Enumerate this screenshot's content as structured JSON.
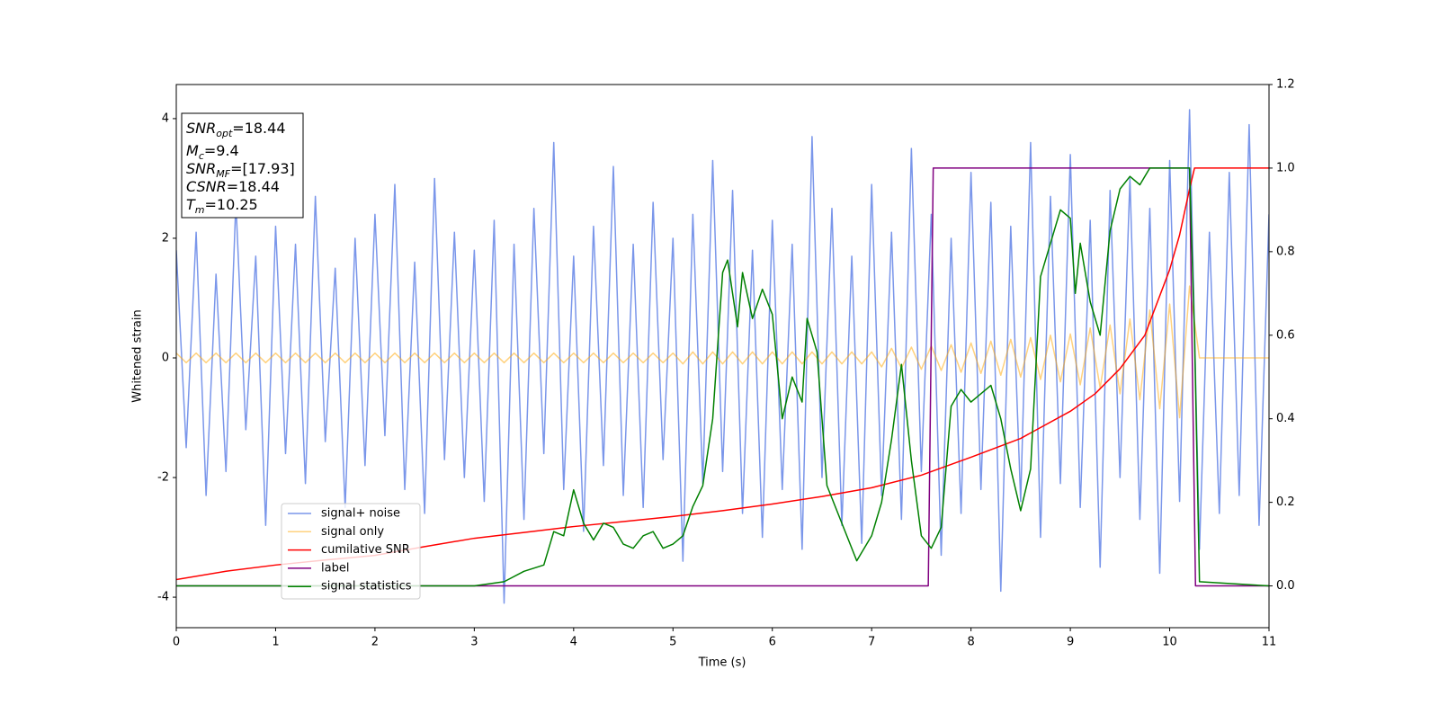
{
  "chart_data": {
    "type": "line",
    "xlabel": "Time (s)",
    "ylabel": "Whitened strain",
    "xlim": [
      0,
      11
    ],
    "ylim": [
      -4.51,
      4.57
    ],
    "y2lim": [
      -0.1,
      1.2
    ],
    "xticks": [
      0,
      1,
      2,
      3,
      4,
      5,
      6,
      7,
      8,
      9,
      10,
      11
    ],
    "yticks": [
      -4,
      -2,
      0,
      2,
      4
    ],
    "y2ticks": [
      {
        "value": 0,
        "label": "0.0"
      },
      {
        "value": 0.2,
        "label": "0.2"
      },
      {
        "value": 0.4,
        "label": "0.4"
      },
      {
        "value": 0.6,
        "label": "0.6"
      },
      {
        "value": 0.8,
        "label": "0.8"
      },
      {
        "value": 1.0,
        "label": "1.0"
      },
      {
        "value": 1.2,
        "label": "1.2"
      }
    ],
    "annotations": [
      {
        "name": "SNR",
        "subscript": "opt",
        "text": "=18.44"
      },
      {
        "name": "M",
        "subscript": "c",
        "text": "=9.4"
      },
      {
        "name": "SNR",
        "subscript": "MF",
        "text": "=[17.93]"
      },
      {
        "name": "CSNR",
        "text": "=18.44"
      },
      {
        "name": "T",
        "subscript": "m",
        "text": "=10.25"
      }
    ],
    "x": [
      0,
      0.1,
      0.2,
      0.3,
      0.4,
      0.5,
      0.6,
      0.7,
      0.8,
      0.9,
      1,
      1.1,
      1.2,
      1.3,
      1.4,
      1.5,
      1.6,
      1.7,
      1.8,
      1.9,
      2,
      2.1,
      2.2,
      2.3,
      2.4,
      2.5,
      2.6,
      2.7,
      2.8,
      2.9,
      3,
      3.1,
      3.2,
      3.3,
      3.4,
      3.5,
      3.6,
      3.7,
      3.8,
      3.9,
      4,
      4.1,
      4.2,
      4.3,
      4.4,
      4.5,
      4.6,
      4.7,
      4.8,
      4.9,
      5,
      5.1,
      5.2,
      5.3,
      5.4,
      5.5,
      5.6,
      5.7,
      5.8,
      5.9,
      6,
      6.1,
      6.2,
      6.3,
      6.4,
      6.5,
      6.6,
      6.7,
      6.8,
      6.9,
      7,
      7.1,
      7.2,
      7.3,
      7.4,
      7.5,
      7.6,
      7.7,
      7.8,
      7.9,
      8,
      8.1,
      8.2,
      8.3,
      8.4,
      8.5,
      8.6,
      8.7,
      8.8,
      8.9,
      9,
      9.1,
      9.2,
      9.3,
      9.4,
      9.5,
      9.6,
      9.7,
      9.8,
      9.9,
      10,
      10.1,
      10.2,
      10.3,
      10.4,
      10.5,
      10.6,
      10.7,
      10.8,
      10.9,
      11
    ],
    "series": [
      {
        "name": "signal+ noise",
        "color": "#4169e1",
        "alpha": 0.7,
        "values": [
          1.8,
          -1.5,
          2.1,
          -2.3,
          1.4,
          -1.9,
          2.6,
          -1.2,
          1.7,
          -2.8,
          2.2,
          -1.6,
          1.9,
          -2.1,
          2.7,
          -1.4,
          1.5,
          -2.5,
          2.0,
          -1.8,
          2.4,
          -1.3,
          2.9,
          -2.2,
          1.6,
          -2.6,
          3.0,
          -1.7,
          2.1,
          -2.0,
          1.8,
          -2.4,
          2.3,
          -4.1,
          1.9,
          -2.7,
          2.5,
          -1.6,
          3.6,
          -2.2,
          1.7,
          -2.9,
          2.2,
          -1.8,
          3.2,
          -2.3,
          1.9,
          -2.5,
          2.6,
          -1.7,
          2.0,
          -3.4,
          2.4,
          -2.1,
          3.3,
          -1.9,
          2.8,
          -2.6,
          1.8,
          -3.0,
          2.3,
          -2.2,
          1.9,
          -3.2,
          3.7,
          -2.0,
          2.5,
          -2.8,
          1.7,
          -3.1,
          2.9,
          -2.3,
          2.1,
          -2.7,
          3.5,
          -1.9,
          2.4,
          -3.3,
          2.0,
          -2.6,
          3.1,
          -2.2,
          2.6,
          -3.9,
          2.2,
          -2.4,
          3.6,
          -3.0,
          2.7,
          -2.1,
          3.4,
          -2.5,
          2.3,
          -3.5,
          2.8,
          -2.0,
          3.0,
          -2.7,
          2.5,
          -3.6,
          3.3,
          -2.4,
          4.15,
          -3.2,
          2.1,
          -2.6,
          3.1,
          -2.3,
          3.9,
          -2.8,
          2.4
        ]
      },
      {
        "name": "signal only",
        "color": "#ffa500",
        "alpha": 0.5,
        "values": [
          0.08,
          -0.08,
          0.08,
          -0.08,
          0.08,
          -0.08,
          0.08,
          -0.08,
          0.08,
          -0.08,
          0.08,
          -0.08,
          0.08,
          -0.08,
          0.08,
          -0.08,
          0.08,
          -0.08,
          0.08,
          -0.08,
          0.08,
          -0.08,
          0.08,
          -0.08,
          0.08,
          -0.08,
          0.08,
          -0.08,
          0.08,
          -0.08,
          0.08,
          -0.08,
          0.08,
          -0.08,
          0.08,
          -0.08,
          0.08,
          -0.08,
          0.08,
          -0.08,
          0.08,
          -0.08,
          0.08,
          -0.08,
          0.08,
          -0.08,
          0.08,
          -0.08,
          0.08,
          -0.08,
          0.08,
          -0.1,
          0.1,
          -0.1,
          0.1,
          -0.1,
          0.1,
          -0.1,
          0.1,
          -0.1,
          0.1,
          -0.1,
          0.1,
          -0.1,
          0.1,
          -0.1,
          0.1,
          -0.1,
          0.1,
          -0.1,
          0.1,
          -0.15,
          0.16,
          -0.17,
          0.18,
          -0.19,
          0.2,
          -0.21,
          0.22,
          -0.24,
          0.25,
          -0.26,
          0.28,
          -0.29,
          0.31,
          -0.32,
          0.34,
          -0.36,
          0.38,
          -0.4,
          0.4,
          -0.45,
          0.5,
          -0.5,
          0.55,
          -0.6,
          0.65,
          -0.7,
          0.8,
          -0.85,
          0.9,
          -1.0,
          1.2,
          0,
          0,
          0,
          0,
          0,
          0,
          0,
          0
        ]
      },
      {
        "name": "cumilative SNR",
        "color": "#ff0000",
        "axis": "y2",
        "x": [
          0,
          0.5,
          1,
          1.5,
          2,
          2.5,
          3,
          3.5,
          4,
          4.5,
          5,
          5.5,
          6,
          6.5,
          7,
          7.5,
          8,
          8.5,
          9,
          9.25,
          9.5,
          9.75,
          10,
          10.1,
          10.2,
          10.25,
          11
        ],
        "values": [
          0.015,
          0.035,
          0.05,
          0.062,
          0.073,
          0.094,
          0.114,
          0.128,
          0.142,
          0.154,
          0.166,
          0.18,
          0.196,
          0.214,
          0.235,
          0.265,
          0.308,
          0.353,
          0.418,
          0.46,
          0.52,
          0.6,
          0.757,
          0.84,
          0.95,
          1.0,
          1.0
        ]
      },
      {
        "name": "label",
        "color": "#800080",
        "axis": "y2",
        "x": [
          0,
          7.57,
          7.62,
          10.2,
          10.26,
          11
        ],
        "values": [
          0,
          0,
          1,
          1,
          0,
          0
        ]
      },
      {
        "name": "signal statistics",
        "color": "#008000",
        "axis": "y2",
        "x": [
          0,
          3,
          3.3,
          3.5,
          3.7,
          3.8,
          3.9,
          4.0,
          4.1,
          4.2,
          4.3,
          4.4,
          4.5,
          4.6,
          4.7,
          4.8,
          4.9,
          5.0,
          5.1,
          5.2,
          5.3,
          5.4,
          5.5,
          5.55,
          5.65,
          5.7,
          5.8,
          5.9,
          6.0,
          6.1,
          6.2,
          6.3,
          6.35,
          6.45,
          6.55,
          6.7,
          6.85,
          7.0,
          7.1,
          7.2,
          7.3,
          7.4,
          7.5,
          7.6,
          7.7,
          7.8,
          7.9,
          8.0,
          8.2,
          8.3,
          8.4,
          8.5,
          8.6,
          8.7,
          8.8,
          8.9,
          9.0,
          9.05,
          9.1,
          9.2,
          9.3,
          9.4,
          9.5,
          9.6,
          9.7,
          9.8,
          10.0,
          10.2,
          10.25,
          10.3,
          11
        ],
        "values": [
          0,
          0,
          0.01,
          0.035,
          0.05,
          0.13,
          0.12,
          0.23,
          0.15,
          0.11,
          0.15,
          0.14,
          0.1,
          0.09,
          0.12,
          0.13,
          0.09,
          0.1,
          0.12,
          0.19,
          0.24,
          0.4,
          0.75,
          0.78,
          0.62,
          0.75,
          0.64,
          0.71,
          0.65,
          0.4,
          0.5,
          0.44,
          0.64,
          0.56,
          0.24,
          0.15,
          0.06,
          0.12,
          0.2,
          0.35,
          0.53,
          0.3,
          0.12,
          0.09,
          0.14,
          0.43,
          0.47,
          0.44,
          0.48,
          0.4,
          0.28,
          0.18,
          0.28,
          0.74,
          0.82,
          0.9,
          0.88,
          0.7,
          0.82,
          0.68,
          0.6,
          0.85,
          0.95,
          0.98,
          0.96,
          1.0,
          1.0,
          1.0,
          0.6,
          0.01,
          0.0
        ]
      }
    ]
  }
}
